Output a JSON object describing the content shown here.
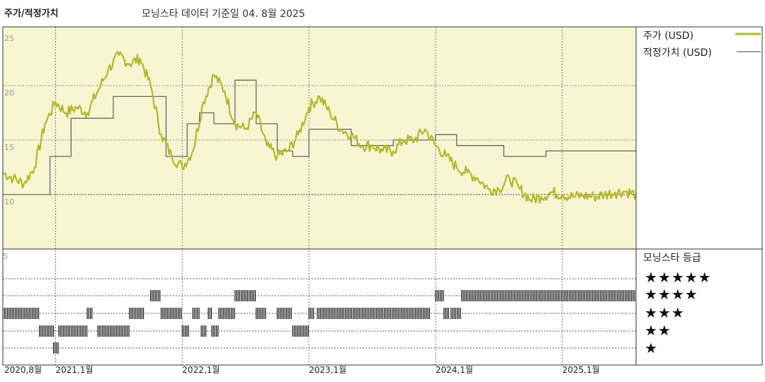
{
  "header": {
    "title": "주가/적정가치",
    "subtitle": "모닝스타 데이터 기준일 04. 8월 2025"
  },
  "colors": {
    "price": "#b2b82a",
    "fair": "#666666",
    "panel_bg": "#f8f6d2",
    "bar": "#111111"
  },
  "chart_data": [
    {
      "type": "line",
      "x_unit": "month",
      "x_range": [
        "2020-08",
        "2025-08"
      ],
      "ylim": [
        5,
        25
      ],
      "yticks": [
        "25",
        "20",
        "15",
        "10"
      ],
      "xticks": [
        {
          "label": "2020,8월",
          "x": "2020-08"
        },
        {
          "label": "2021,1월",
          "x": "2021-01"
        },
        {
          "label": "2022,1월",
          "x": "2022-01"
        },
        {
          "label": "2023,1월",
          "x": "2023-01"
        },
        {
          "label": "2024,1월",
          "x": "2024-01"
        },
        {
          "label": "2025,1월",
          "x": "2025-01"
        }
      ],
      "series": [
        {
          "name": "주가 (USD)",
          "style": "line",
          "points": [
            [
              "2020-08-01",
              12.0
            ],
            [
              "2020-09-01",
              11.5
            ],
            [
              "2020-10-01",
              11.0
            ],
            [
              "2020-11-01",
              12.5
            ],
            [
              "2020-12-01",
              16.5
            ],
            [
              "2021-01-01",
              18.5
            ],
            [
              "2021-02-01",
              17.5
            ],
            [
              "2021-03-01",
              18.0
            ],
            [
              "2021-04-01",
              17.5
            ],
            [
              "2021-05-01",
              19.5
            ],
            [
              "2021-06-01",
              21.5
            ],
            [
              "2021-07-01",
              22.8
            ],
            [
              "2021-08-01",
              22.0
            ],
            [
              "2021-09-01",
              22.5
            ],
            [
              "2021-10-01",
              20.0
            ],
            [
              "2021-11-01",
              15.5
            ],
            [
              "2021-12-01",
              13.5
            ],
            [
              "2022-01-01",
              12.5
            ],
            [
              "2022-02-01",
              14.0
            ],
            [
              "2022-03-01",
              18.5
            ],
            [
              "2022-04-01",
              21.0
            ],
            [
              "2022-05-01",
              19.5
            ],
            [
              "2022-06-01",
              16.5
            ],
            [
              "2022-07-01",
              16.0
            ],
            [
              "2022-08-01",
              17.5
            ],
            [
              "2022-09-01",
              14.5
            ],
            [
              "2022-10-01",
              13.5
            ],
            [
              "2022-11-01",
              14.0
            ],
            [
              "2022-12-01",
              15.5
            ],
            [
              "2023-01-01",
              18.0
            ],
            [
              "2023-02-01",
              19.0
            ],
            [
              "2023-03-01",
              17.5
            ],
            [
              "2023-04-01",
              16.0
            ],
            [
              "2023-05-01",
              15.5
            ],
            [
              "2023-06-01",
              14.5
            ],
            [
              "2023-07-01",
              14.5
            ],
            [
              "2023-08-01",
              14.0
            ],
            [
              "2023-09-01",
              14.0
            ],
            [
              "2023-10-01",
              15.0
            ],
            [
              "2023-11-01",
              15.0
            ],
            [
              "2023-12-01",
              16.0
            ],
            [
              "2024-01-01",
              14.5
            ],
            [
              "2024-02-01",
              13.5
            ],
            [
              "2024-03-01",
              12.5
            ],
            [
              "2024-04-01",
              12.0
            ],
            [
              "2024-05-01",
              11.5
            ],
            [
              "2024-06-01",
              10.5
            ],
            [
              "2024-07-01",
              10.5
            ],
            [
              "2024-08-01",
              11.5
            ],
            [
              "2024-09-01",
              10.5
            ],
            [
              "2024-10-01",
              9.5
            ],
            [
              "2024-11-01",
              9.8
            ],
            [
              "2024-12-01",
              10.2
            ],
            [
              "2025-01-01",
              10.0
            ],
            [
              "2025-02-01",
              9.8
            ],
            [
              "2025-03-01",
              9.9
            ],
            [
              "2025-04-01",
              9.8
            ],
            [
              "2025-05-01",
              10.0
            ],
            [
              "2025-06-01",
              10.2
            ],
            [
              "2025-07-01",
              10.3
            ],
            [
              "2025-08-01",
              10.0
            ]
          ]
        },
        {
          "name": "적정가치 (USD)",
          "style": "step",
          "points": [
            [
              "2020-08-01",
              10.0
            ],
            [
              "2020-12-15",
              13.5
            ],
            [
              "2021-02-15",
              17.0
            ],
            [
              "2021-06-15",
              19.0
            ],
            [
              "2021-11-15",
              13.5
            ],
            [
              "2022-01-15",
              16.5
            ],
            [
              "2022-02-20",
              17.5
            ],
            [
              "2022-04-01",
              16.5
            ],
            [
              "2022-06-01",
              20.5
            ],
            [
              "2022-08-01",
              16.5
            ],
            [
              "2022-10-01",
              14.0
            ],
            [
              "2022-11-15",
              13.5
            ],
            [
              "2023-01-01",
              16.0
            ],
            [
              "2023-05-01",
              14.5
            ],
            [
              "2023-09-01",
              15.0
            ],
            [
              "2024-01-01",
              15.5
            ],
            [
              "2024-03-01",
              14.5
            ],
            [
              "2024-07-15",
              13.5
            ],
            [
              "2024-11-15",
              14.0
            ],
            [
              "2025-08-01",
              14.0
            ]
          ]
        }
      ]
    },
    {
      "type": "timeline",
      "title": "모닝스타 등급",
      "ytick": "5",
      "levels": [
        "★★★★★",
        "★★★★",
        "★★★",
        "★★",
        "★"
      ],
      "segments": [
        {
          "rating": 3,
          "start": "2020-08-01",
          "end": "2020-11-15"
        },
        {
          "rating": 2,
          "start": "2020-11-15",
          "end": "2020-12-25"
        },
        {
          "rating": 1,
          "start": "2020-12-25",
          "end": "2021-01-10"
        },
        {
          "rating": 2,
          "start": "2021-01-10",
          "end": "2021-04-01"
        },
        {
          "rating": 3,
          "start": "2021-04-01",
          "end": "2021-04-15"
        },
        {
          "rating": 2,
          "start": "2021-05-01",
          "end": "2021-08-01"
        },
        {
          "rating": 3,
          "start": "2021-08-01",
          "end": "2021-09-15"
        },
        {
          "rating": 4,
          "start": "2021-10-01",
          "end": "2021-11-01"
        },
        {
          "rating": 3,
          "start": "2021-11-01",
          "end": "2022-01-01"
        },
        {
          "rating": 2,
          "start": "2022-01-01",
          "end": "2022-01-20"
        },
        {
          "rating": 3,
          "start": "2022-02-01",
          "end": "2022-02-20"
        },
        {
          "rating": 2,
          "start": "2022-02-25",
          "end": "2022-03-10"
        },
        {
          "rating": 3,
          "start": "2022-03-15",
          "end": "2022-03-25"
        },
        {
          "rating": 2,
          "start": "2022-03-25",
          "end": "2022-04-15"
        },
        {
          "rating": 3,
          "start": "2022-04-15",
          "end": "2022-06-01"
        },
        {
          "rating": 4,
          "start": "2022-06-01",
          "end": "2022-08-01"
        },
        {
          "rating": 3,
          "start": "2022-08-01",
          "end": "2022-09-01"
        },
        {
          "rating": 3,
          "start": "2022-10-01",
          "end": "2022-11-15"
        },
        {
          "rating": 2,
          "start": "2022-11-15",
          "end": "2023-01-01"
        },
        {
          "rating": 3,
          "start": "2023-01-01",
          "end": "2023-01-15"
        },
        {
          "rating": 3,
          "start": "2023-01-25",
          "end": "2023-12-15"
        },
        {
          "rating": 4,
          "start": "2024-01-01",
          "end": "2024-01-25"
        },
        {
          "rating": 3,
          "start": "2024-01-25",
          "end": "2024-02-10"
        },
        {
          "rating": 3,
          "start": "2024-02-15",
          "end": "2024-03-15"
        },
        {
          "rating": 4,
          "start": "2024-03-15",
          "end": "2025-08-01"
        }
      ]
    }
  ]
}
